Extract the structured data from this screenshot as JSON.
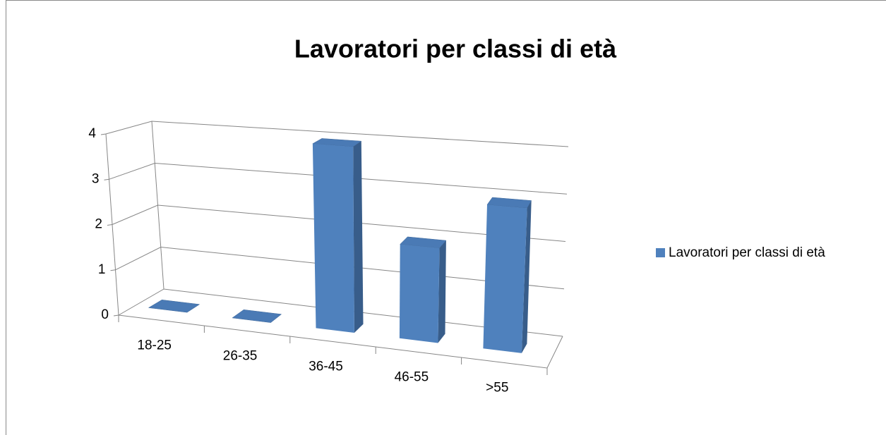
{
  "chart_data": {
    "type": "bar3d",
    "title": "Lavoratori per classi di età",
    "categories": [
      "18-25",
      "26-35",
      "36-45",
      "46-55",
      ">55"
    ],
    "series": [
      {
        "name": "Lavoratori per classi di età",
        "color": "#4f81bd",
        "values": [
          0,
          0,
          4,
          2,
          3
        ]
      }
    ],
    "ylim": [
      0,
      4
    ],
    "yticks": [
      0,
      1,
      2,
      3,
      4
    ],
    "grid": true,
    "legend": "right"
  }
}
